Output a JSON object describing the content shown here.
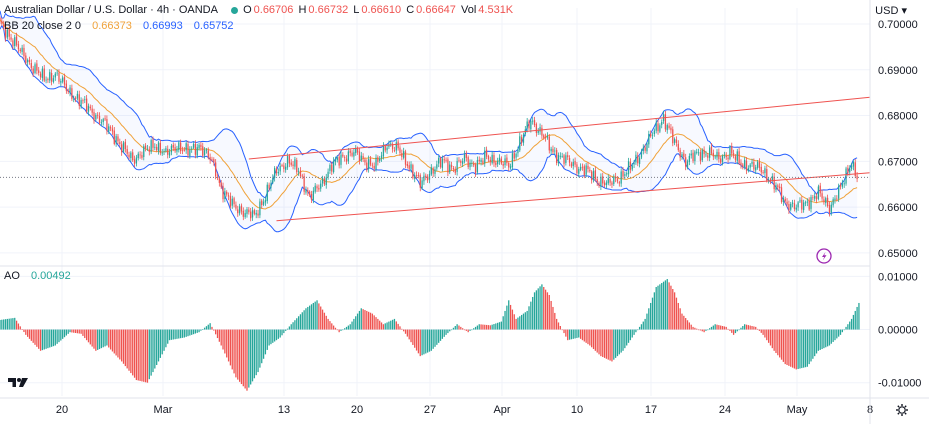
{
  "header": {
    "symbol": "Australian Dollar / U.S. Dollar · 4h · OANDA",
    "o_label": "O",
    "o_value": "0.66706",
    "h_label": "H",
    "h_value": "0.66732",
    "l_label": "L",
    "l_value": "0.66610",
    "c_label": "C",
    "c_value": "0.66647",
    "vol_label": "Vol",
    "vol_value": "4.531K",
    "bb_label": "BB 20 close 2 0",
    "bb_basis": "0.66373",
    "bb_upper": "0.66993",
    "bb_lower": "0.65752",
    "currency": "USD"
  },
  "ao": {
    "label": "AO",
    "value": "0.00492"
  },
  "colors": {
    "up": "#26a69a",
    "down": "#ef5350",
    "basis": "#f0a23a",
    "bands": "#2962ff",
    "channel": "#ef5350",
    "ao_up": "#26a69a",
    "ao_down": "#ef5350"
  },
  "chart_data": [
    {
      "type": "candlestick",
      "y_ticks": [
        "0.70000",
        "0.69000",
        "0.68000",
        "0.67000",
        "0.66000",
        "0.65000"
      ],
      "ylim": [
        0.648,
        0.7035
      ],
      "x_ticks": [
        "20",
        "Mar",
        "13",
        "20",
        "27",
        "Apr",
        "10",
        "17",
        "24",
        "May",
        "8"
      ],
      "close_series": [
        [
          0,
          0.7
        ],
        [
          6,
          0.697
        ],
        [
          12,
          0.6935
        ],
        [
          18,
          0.6905
        ],
        [
          24,
          0.688
        ],
        [
          30,
          0.689
        ],
        [
          36,
          0.686
        ],
        [
          42,
          0.6835
        ],
        [
          48,
          0.6818
        ],
        [
          54,
          0.679
        ],
        [
          60,
          0.677
        ],
        [
          66,
          0.673
        ],
        [
          72,
          0.6705
        ],
        [
          78,
          0.672
        ],
        [
          84,
          0.6738
        ],
        [
          90,
          0.6715
        ],
        [
          96,
          0.6735
        ],
        [
          102,
          0.672
        ],
        [
          108,
          0.6735
        ],
        [
          114,
          0.6705
        ],
        [
          117,
          0.668
        ],
        [
          120,
          0.664
        ],
        [
          126,
          0.6605
        ],
        [
          132,
          0.659
        ],
        [
          138,
          0.658
        ],
        [
          144,
          0.6625
        ],
        [
          150,
          0.668
        ],
        [
          156,
          0.67
        ],
        [
          162,
          0.668
        ],
        [
          168,
          0.662
        ],
        [
          174,
          0.665
        ],
        [
          180,
          0.669
        ],
        [
          186,
          0.671
        ],
        [
          192,
          0.672
        ],
        [
          198,
          0.67
        ],
        [
          204,
          0.669
        ],
        [
          210,
          0.674
        ],
        [
          216,
          0.6725
        ],
        [
          222,
          0.669
        ],
        [
          228,
          0.665
        ],
        [
          234,
          0.668
        ],
        [
          240,
          0.67
        ],
        [
          246,
          0.6685
        ],
        [
          252,
          0.6705
        ],
        [
          258,
          0.669
        ],
        [
          264,
          0.671
        ],
        [
          270,
          0.67
        ],
        [
          276,
          0.669
        ],
        [
          282,
          0.674
        ],
        [
          288,
          0.679
        ],
        [
          294,
          0.676
        ],
        [
          300,
          0.672
        ],
        [
          306,
          0.6705
        ],
        [
          312,
          0.669
        ],
        [
          318,
          0.668
        ],
        [
          324,
          0.666
        ],
        [
          330,
          0.665
        ],
        [
          336,
          0.6665
        ],
        [
          342,
          0.6685
        ],
        [
          348,
          0.672
        ],
        [
          354,
          0.676
        ],
        [
          360,
          0.6795
        ],
        [
          366,
          0.674
        ],
        [
          372,
          0.67
        ],
        [
          378,
          0.6715
        ],
        [
          384,
          0.672
        ],
        [
          390,
          0.6705
        ],
        [
          396,
          0.672
        ],
        [
          402,
          0.6695
        ],
        [
          408,
          0.669
        ],
        [
          414,
          0.668
        ],
        [
          420,
          0.665
        ],
        [
          426,
          0.661
        ],
        [
          432,
          0.66
        ],
        [
          438,
          0.661
        ],
        [
          444,
          0.663
        ],
        [
          450,
          0.66
        ],
        [
          456,
          0.664
        ],
        [
          462,
          0.67
        ],
        [
          465,
          0.6665
        ]
      ],
      "channel_lines": [
        {
          "from": [
            135,
            0.6705
          ],
          "to": [
            472,
            0.684
          ]
        },
        {
          "from": [
            150,
            0.657
          ],
          "to": [
            472,
            0.6675
          ]
        }
      ],
      "last_price": 0.6665
    },
    {
      "type": "histogram",
      "name": "AO",
      "y_ticks": [
        "0.01000",
        "0.00000",
        "-0.01000"
      ],
      "ylim": [
        -0.0125,
        0.0112
      ],
      "series": [
        [
          0,
          0.0018
        ],
        [
          8,
          0.0022
        ],
        [
          14,
          -0.001
        ],
        [
          22,
          -0.004
        ],
        [
          30,
          -0.003
        ],
        [
          38,
          -0.0005
        ],
        [
          44,
          -0.0008
        ],
        [
          52,
          -0.004
        ],
        [
          58,
          -0.003
        ],
        [
          66,
          -0.006
        ],
        [
          74,
          -0.0095
        ],
        [
          80,
          -0.01
        ],
        [
          86,
          -0.006
        ],
        [
          92,
          -0.002
        ],
        [
          100,
          -0.0015
        ],
        [
          108,
          -0.0005
        ],
        [
          114,
          0.0012
        ],
        [
          120,
          -0.003
        ],
        [
          128,
          -0.009
        ],
        [
          134,
          -0.0115
        ],
        [
          140,
          -0.008
        ],
        [
          146,
          -0.003
        ],
        [
          152,
          -0.0015
        ],
        [
          158,
          0.001
        ],
        [
          166,
          0.004
        ],
        [
          172,
          0.0055
        ],
        [
          178,
          0.002
        ],
        [
          184,
          -0.0005
        ],
        [
          190,
          0.001
        ],
        [
          196,
          0.004
        ],
        [
          202,
          0.003
        ],
        [
          208,
          0.001
        ],
        [
          214,
          0.002
        ],
        [
          220,
          -0.0008
        ],
        [
          228,
          -0.005
        ],
        [
          234,
          -0.004
        ],
        [
          242,
          -0.001
        ],
        [
          248,
          0.001
        ],
        [
          254,
          -0.0005
        ],
        [
          260,
          0.001
        ],
        [
          266,
          0.0008
        ],
        [
          272,
          0.0015
        ],
        [
          276,
          0.0055
        ],
        [
          280,
          0.002
        ],
        [
          286,
          0.0035
        ],
        [
          290,
          0.007
        ],
        [
          294,
          0.0085
        ],
        [
          298,
          0.0065
        ],
        [
          302,
          0.002
        ],
        [
          308,
          -0.002
        ],
        [
          314,
          -0.0015
        ],
        [
          320,
          -0.003
        ],
        [
          326,
          -0.005
        ],
        [
          332,
          -0.006
        ],
        [
          338,
          -0.004
        ],
        [
          344,
          -0.001
        ],
        [
          350,
          0.002
        ],
        [
          356,
          0.008
        ],
        [
          362,
          0.0095
        ],
        [
          366,
          0.007
        ],
        [
          370,
          0.003
        ],
        [
          376,
          0.0005
        ],
        [
          382,
          -0.0005
        ],
        [
          388,
          0.001
        ],
        [
          394,
          0.0005
        ],
        [
          398,
          -0.001
        ],
        [
          404,
          0.001
        ],
        [
          410,
          0.0005
        ],
        [
          414,
          -0.001
        ],
        [
          420,
          -0.004
        ],
        [
          426,
          -0.0065
        ],
        [
          432,
          -0.0075
        ],
        [
          438,
          -0.007
        ],
        [
          444,
          -0.004
        ],
        [
          450,
          -0.003
        ],
        [
          456,
          -0.001
        ],
        [
          462,
          0.002
        ],
        [
          466,
          0.005
        ]
      ]
    }
  ]
}
